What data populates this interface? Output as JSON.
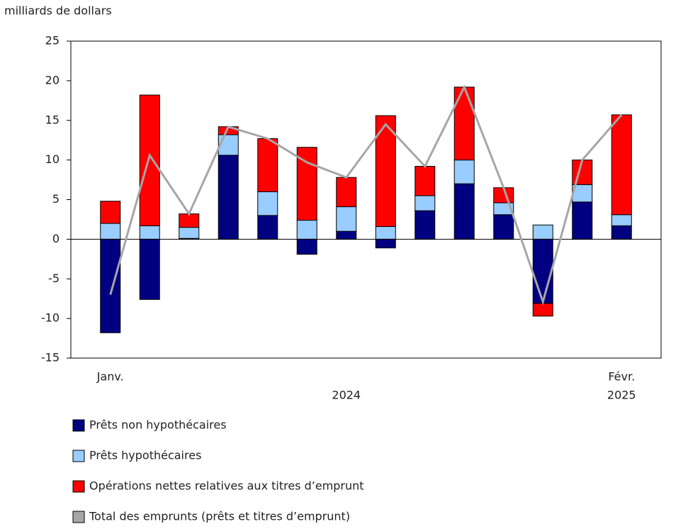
{
  "chart_data": {
    "type": "bar",
    "stacked": true,
    "y_label": "milliards de dollars",
    "categories": [
      "Janv.",
      null,
      null,
      null,
      null,
      null,
      null,
      null,
      null,
      null,
      null,
      null,
      null,
      "Févr."
    ],
    "year_labels": [
      "2024",
      "2025"
    ],
    "ylim": [
      -15,
      25
    ],
    "yticks": [
      -15,
      -10,
      -5,
      0,
      5,
      10,
      15,
      20,
      25
    ],
    "series": [
      {
        "name": "Prêts non hypothécaires",
        "color": "#000080",
        "values": [
          -11.8,
          -7.6,
          0.1,
          10.6,
          3.0,
          -1.9,
          1.0,
          -1.1,
          3.6,
          7.0,
          3.1,
          -8.1,
          4.7,
          1.7
        ]
      },
      {
        "name": "Prêts hypothécaires",
        "color": "#99ccff",
        "values": [
          2.0,
          1.7,
          1.4,
          2.6,
          3.0,
          2.4,
          3.1,
          1.6,
          1.9,
          3.0,
          1.5,
          1.8,
          2.2,
          1.4
        ]
      },
      {
        "name": "Opérations nettes relatives aux titres d’emprunt",
        "color": "#ff0000",
        "values": [
          2.8,
          16.5,
          1.7,
          1.0,
          6.7,
          9.2,
          3.7,
          14.0,
          3.7,
          9.2,
          1.9,
          -1.6,
          3.1,
          12.6
        ]
      },
      {
        "name": "Total des emprunts (prêts et titres d’emprunt)",
        "color": "#a6a6a6",
        "type": "line",
        "values": [
          -7.0,
          10.6,
          3.2,
          14.2,
          12.7,
          9.7,
          7.8,
          14.5,
          9.2,
          19.2,
          6.5,
          -7.9,
          10.0,
          15.7
        ]
      }
    ]
  }
}
